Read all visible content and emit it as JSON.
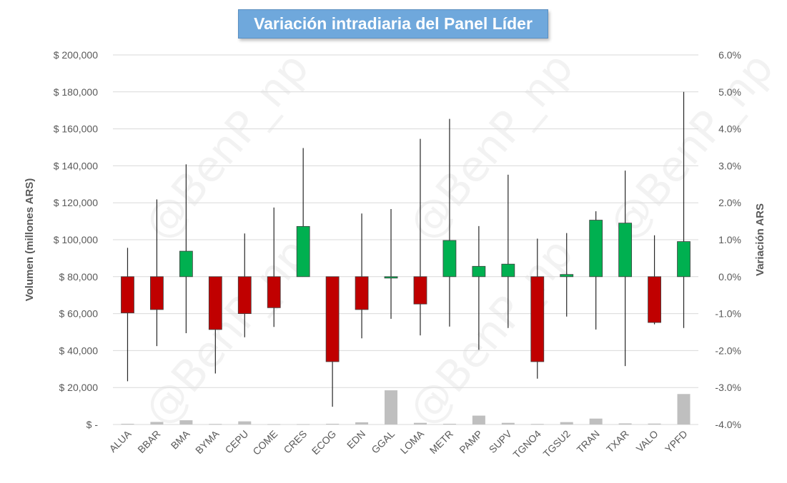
{
  "chart_data": {
    "type": "candlestick",
    "title": "Variación intradiaria del Panel Líder",
    "ylabel_left": "Volumen (millones ARS)",
    "ylabel_right": "Variación ARS",
    "ylim_left": [
      0,
      200000
    ],
    "ylim_right": [
      -4.0,
      6.0
    ],
    "left_ticks": [
      "$ -",
      "$ 20,000",
      "$ 40,000",
      "$ 60,000",
      "$ 80,000",
      "$ 100,000",
      "$ 120,000",
      "$ 140,000",
      "$ 160,000",
      "$ 180,000",
      "$ 200,000"
    ],
    "right_ticks": [
      "-4.0%",
      "-3.0%",
      "-2.0%",
      "-1.0%",
      "0.0%",
      "1.0%",
      "2.0%",
      "3.0%",
      "4.0%",
      "5.0%",
      "6.0%"
    ],
    "grid": true,
    "watermark": "@BenP_np",
    "colors": {
      "up": "#00b050",
      "down": "#c00000",
      "volume": "#bfbfbf",
      "wick": "#262626",
      "grid": "#d9d9d9"
    },
    "categories": [
      "ALUA",
      "BBAR",
      "BMA",
      "BYMA",
      "CEPU",
      "COME",
      "CRES",
      "ECOG",
      "EDN",
      "GGAL",
      "LOMA",
      "METR",
      "PAMP",
      "SUPV",
      "TGNO4",
      "TGSU2",
      "TRAN",
      "TXAR",
      "VALO",
      "YPFD"
    ],
    "series": [
      {
        "ticker": "ALUA",
        "open": 0,
        "close": -0.98,
        "high": 0.78,
        "low": -2.83,
        "volume": 400
      },
      {
        "ticker": "BBAR",
        "open": 0,
        "close": -0.89,
        "high": 2.09,
        "low": -1.88,
        "volume": 1400
      },
      {
        "ticker": "BMA",
        "open": 0,
        "close": 0.69,
        "high": 3.04,
        "low": -1.53,
        "volume": 2300
      },
      {
        "ticker": "BYMA",
        "open": 0,
        "close": -1.43,
        "high": 0.0,
        "low": -2.62,
        "volume": 300
      },
      {
        "ticker": "CEPU",
        "open": 0,
        "close": -1.0,
        "high": 1.17,
        "low": -1.64,
        "volume": 1700
      },
      {
        "ticker": "COME",
        "open": 0,
        "close": -0.84,
        "high": 1.87,
        "low": -1.36,
        "volume": 200
      },
      {
        "ticker": "CRES",
        "open": 0,
        "close": 1.36,
        "high": 3.48,
        "low": 0.0,
        "volume": 200
      },
      {
        "ticker": "ECOG",
        "open": 0,
        "close": -2.3,
        "high": 0.0,
        "low": -3.52,
        "volume": 400
      },
      {
        "ticker": "EDN",
        "open": 0,
        "close": -0.89,
        "high": 1.71,
        "low": -1.67,
        "volume": 1200
      },
      {
        "ticker": "GGAL",
        "open": 0,
        "close": 0.0,
        "high": 1.83,
        "low": -1.14,
        "volume": 18500
      },
      {
        "ticker": "LOMA",
        "open": 0,
        "close": -0.74,
        "high": 3.73,
        "low": -1.59,
        "volume": 900
      },
      {
        "ticker": "METR",
        "open": 0,
        "close": 0.98,
        "high": 4.27,
        "low": -1.35,
        "volume": 400
      },
      {
        "ticker": "PAMP",
        "open": 0,
        "close": 0.28,
        "high": 1.37,
        "low": -1.98,
        "volume": 4800
      },
      {
        "ticker": "SUPV",
        "open": 0,
        "close": 0.34,
        "high": 2.76,
        "low": -1.39,
        "volume": 900
      },
      {
        "ticker": "TGNO4",
        "open": 0,
        "close": -2.3,
        "high": 1.03,
        "low": -2.76,
        "volume": 300
      },
      {
        "ticker": "TGSU2",
        "open": 0,
        "close": 0.06,
        "high": 1.18,
        "low": -1.08,
        "volume": 1300
      },
      {
        "ticker": "TRAN",
        "open": 0,
        "close": 1.53,
        "high": 1.77,
        "low": -1.43,
        "volume": 3200
      },
      {
        "ticker": "TXAR",
        "open": 0,
        "close": 1.45,
        "high": 2.87,
        "low": -2.42,
        "volume": 600
      },
      {
        "ticker": "VALO",
        "open": 0,
        "close": -1.24,
        "high": 1.12,
        "low": -1.29,
        "volume": 500
      },
      {
        "ticker": "YPFD",
        "open": 0,
        "close": 0.95,
        "high": 5.0,
        "low": -1.39,
        "volume": 16500
      }
    ]
  }
}
